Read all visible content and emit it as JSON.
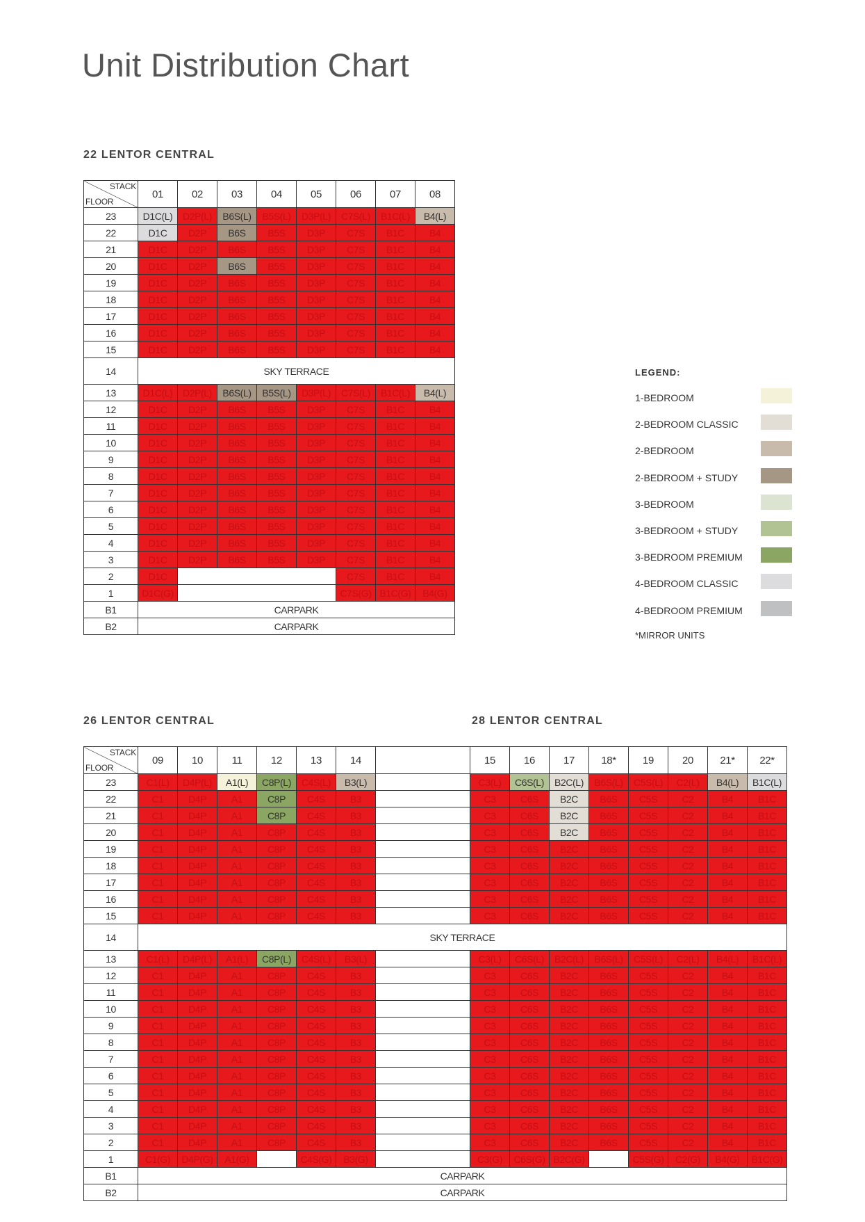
{
  "title": "Unit Distribution Chart",
  "sold_color": "#e8191c",
  "tables": [
    {
      "headings": [
        "22 LENTOR CENTRAL"
      ],
      "corner_top": "STACK",
      "corner_bottom": "FLOOR",
      "stacks": [
        "01",
        "02",
        "03",
        "04",
        "05",
        "06",
        "07",
        "08"
      ],
      "rows": [
        {
          "floor": "23",
          "units": [
            {
              "label": "D1C(L)",
              "color": "#dcdcde"
            },
            "D2P(L)",
            {
              "label": "B6S(L)",
              "color": "#a69684"
            },
            "B5S(L)",
            "D3P(L)",
            "C7S(L)",
            "B1C(L)",
            {
              "label": "B4(L)",
              "color": "#c9bbab"
            }
          ]
        },
        {
          "floor": "22",
          "units": [
            {
              "label": "D1C",
              "color": "#dcdcde"
            },
            "D2P",
            {
              "label": "B6S",
              "color": "#a69684"
            },
            "B5S",
            "D3P",
            "C7S",
            "B1C",
            "B4"
          ]
        },
        {
          "floor": "21",
          "units": [
            "D1C",
            "D2P",
            "B6S",
            "B5S",
            "D3P",
            "C7S",
            "B1C",
            "B4"
          ]
        },
        {
          "floor": "20",
          "units": [
            "D1C",
            "D2P",
            {
              "label": "B6S",
              "color": "#a69684"
            },
            "B5S",
            "D3P",
            "C7S",
            "B1C",
            "B4"
          ]
        },
        {
          "floor": "19",
          "units": [
            "D1C",
            "D2P",
            "B6S",
            "B5S",
            "D3P",
            "C7S",
            "B1C",
            "B4"
          ]
        },
        {
          "floor": "18",
          "units": [
            "D1C",
            "D2P",
            "B6S",
            "B5S",
            "D3P",
            "C7S",
            "B1C",
            "B4"
          ]
        },
        {
          "floor": "17",
          "units": [
            "D1C",
            "D2P",
            "B6S",
            "B5S",
            "D3P",
            "C7S",
            "B1C",
            "B4"
          ]
        },
        {
          "floor": "16",
          "units": [
            "D1C",
            "D2P",
            "B6S",
            "B5S",
            "D3P",
            "C7S",
            "B1C",
            "B4"
          ]
        },
        {
          "floor": "15",
          "units": [
            "D1C",
            "D2P",
            "B6S",
            "B5S",
            "D3P",
            "C7S",
            "B1C",
            "B4"
          ]
        },
        {
          "floor": "14",
          "text": "SKY TERRACE"
        },
        {
          "floor": "13",
          "units": [
            "D1C(L)",
            "D2P(L)",
            {
              "label": "B6S(L)",
              "color": "#a69684"
            },
            {
              "label": "B5S(L)",
              "color": "#a69684"
            },
            "D3P(L)",
            "C7S(L)",
            "B1C(L)",
            {
              "label": "B4(L)",
              "color": "#c9bbab"
            }
          ]
        },
        {
          "floor": "12",
          "units": [
            "D1C",
            "D2P",
            "B6S",
            "B5S",
            "D3P",
            "C7S",
            "B1C",
            "B4"
          ]
        },
        {
          "floor": "11",
          "units": [
            "D1C",
            "D2P",
            "B6S",
            "B5S",
            "D3P",
            "C7S",
            "B1C",
            "B4"
          ]
        },
        {
          "floor": "10",
          "units": [
            "D1C",
            "D2P",
            "B6S",
            "B5S",
            "D3P",
            "C7S",
            "B1C",
            "B4"
          ]
        },
        {
          "floor": "9",
          "units": [
            "D1C",
            "D2P",
            "B6S",
            "B5S",
            "D3P",
            "C7S",
            "B1C",
            "B4"
          ]
        },
        {
          "floor": "8",
          "units": [
            "D1C",
            "D2P",
            "B6S",
            "B5S",
            "D3P",
            "C7S",
            "B1C",
            "B4"
          ]
        },
        {
          "floor": "7",
          "units": [
            "D1C",
            "D2P",
            "B6S",
            "B5S",
            "D3P",
            "C7S",
            "B1C",
            "B4"
          ]
        },
        {
          "floor": "6",
          "units": [
            "D1C",
            "D2P",
            "B6S",
            "B5S",
            "D3P",
            "C7S",
            "B1C",
            "B4"
          ]
        },
        {
          "floor": "5",
          "units": [
            "D1C",
            "D2P",
            "B6S",
            "B5S",
            "D3P",
            "C7S",
            "B1C",
            "B4"
          ]
        },
        {
          "floor": "4",
          "units": [
            "D1C",
            "D2P",
            "B6S",
            "B5S",
            "D3P",
            "C7S",
            "B1C",
            "B4"
          ]
        },
        {
          "floor": "3",
          "units": [
            "D1C",
            "D2P",
            "B6S",
            "B5S",
            "D3P",
            "C7S",
            "B1C",
            "B4"
          ]
        },
        {
          "floor": "2",
          "units": [
            "D1C",
            null,
            null,
            null,
            null,
            "C7S",
            "B1C",
            "B4"
          ]
        },
        {
          "floor": "1",
          "units": [
            "D1C(G)",
            null,
            null,
            null,
            null,
            "C7S(G)",
            "B1C(G)",
            "B4(G)"
          ]
        },
        {
          "floor": "B1",
          "text": "CARPARK"
        },
        {
          "floor": "B2",
          "text": "CARPARK"
        }
      ]
    },
    {
      "headings": [
        "26 LENTOR CENTRAL",
        "28 LENTOR CENTRAL"
      ],
      "corner_top": "STACK",
      "corner_bottom": "FLOOR",
      "stacks": [
        "09",
        "10",
        "11",
        "12",
        "13",
        "14",
        null,
        "15",
        "16",
        "17",
        "18*",
        "19",
        "20",
        "21*",
        "22*"
      ],
      "rows": [
        {
          "floor": "23",
          "units": [
            "C1(L)",
            "D4P(L)",
            {
              "label": "A1(L)",
              "color": "#f4f2d9"
            },
            {
              "label": "C8P(L)",
              "color": "#8ba663"
            },
            "C4S(L)",
            {
              "label": "B3(L)",
              "color": "#c9bbab"
            },
            null,
            "C3(L)",
            {
              "label": "C6S(L)",
              "color": "#b1c293"
            },
            {
              "label": "B2C(L)",
              "color": "#e2ddd5"
            },
            "B6S(L)",
            "C5S(L)",
            "C2(L)",
            {
              "label": "B4(L)",
              "color": "#c9bbab"
            },
            {
              "label": "B1C(L)",
              "color": "#dcdcde"
            }
          ]
        },
        {
          "floor": "22",
          "units": [
            "C1",
            "D4P",
            "A1",
            {
              "label": "C8P",
              "color": "#8ba663"
            },
            "C4S",
            "B3",
            null,
            "C3",
            "C6S",
            {
              "label": "B2C",
              "color": "#e2ddd5"
            },
            "B6S",
            "C5S",
            "C2",
            "B4",
            "B1C"
          ]
        },
        {
          "floor": "21",
          "units": [
            "C1",
            "D4P",
            "A1",
            {
              "label": "C8P",
              "color": "#8ba663"
            },
            "C4S",
            "B3",
            null,
            "C3",
            "C6S",
            {
              "label": "B2C",
              "color": "#e2ddd5"
            },
            "B6S",
            "C5S",
            "C2",
            "B4",
            "B1C"
          ]
        },
        {
          "floor": "20",
          "units": [
            "C1",
            "D4P",
            "A1",
            "C8P",
            "C4S",
            "B3",
            null,
            "C3",
            "C6S",
            {
              "label": "B2C",
              "color": "#e2ddd5"
            },
            "B6S",
            "C5S",
            "C2",
            "B4",
            "B1C"
          ]
        },
        {
          "floor": "19",
          "units": [
            "C1",
            "D4P",
            "A1",
            "C8P",
            "C4S",
            "B3",
            null,
            "C3",
            "C6S",
            "B2C",
            "B6S",
            "C5S",
            "C2",
            "B4",
            "B1C"
          ]
        },
        {
          "floor": "18",
          "units": [
            "C1",
            "D4P",
            "A1",
            "C8P",
            "C4S",
            "B3",
            null,
            "C3",
            "C6S",
            "B2C",
            "B6S",
            "C5S",
            "C2",
            "B4",
            "B1C"
          ]
        },
        {
          "floor": "17",
          "units": [
            "C1",
            "D4P",
            "A1",
            "C8P",
            "C4S",
            "B3",
            null,
            "C3",
            "C6S",
            "B2C",
            "B6S",
            "C5S",
            "C2",
            "B4",
            "B1C"
          ]
        },
        {
          "floor": "16",
          "units": [
            "C1",
            "D4P",
            "A1",
            "C8P",
            "C4S",
            "B3",
            null,
            "C3",
            "C6S",
            "B2C",
            "B6S",
            "C5S",
            "C2",
            "B4",
            "B1C"
          ]
        },
        {
          "floor": "15",
          "units": [
            "C1",
            "D4P",
            "A1",
            "C8P",
            "C4S",
            "B3",
            null,
            "C3",
            "C6S",
            "B2C",
            "B6S",
            "C5S",
            "C2",
            "B4",
            "B1C"
          ]
        },
        {
          "floor": "14",
          "text": "SKY TERRACE"
        },
        {
          "floor": "13",
          "units": [
            "C1(L)",
            "D4P(L)",
            "A1(L)",
            {
              "label": "C8P(L)",
              "color": "#8ba663"
            },
            "C4S(L)",
            "B3(L)",
            null,
            "C3(L)",
            "C6S(L)",
            "B2C(L)",
            "B6S(L)",
            "C5S(L)",
            "C2(L)",
            "B4(L)",
            "B1C(L)"
          ]
        },
        {
          "floor": "12",
          "units": [
            "C1",
            "D4P",
            "A1",
            "C8P",
            "C4S",
            "B3",
            null,
            "C3",
            "C6S",
            "B2C",
            "B6S",
            "C5S",
            "C2",
            "B4",
            "B1C"
          ]
        },
        {
          "floor": "11",
          "units": [
            "C1",
            "D4P",
            "A1",
            "C8P",
            "C4S",
            "B3",
            null,
            "C3",
            "C6S",
            "B2C",
            "B6S",
            "C5S",
            "C2",
            "B4",
            "B1C"
          ]
        },
        {
          "floor": "10",
          "units": [
            "C1",
            "D4P",
            "A1",
            "C8P",
            "C4S",
            "B3",
            null,
            "C3",
            "C6S",
            "B2C",
            "B6S",
            "C5S",
            "C2",
            "B4",
            "B1C"
          ]
        },
        {
          "floor": "9",
          "units": [
            "C1",
            "D4P",
            "A1",
            "C8P",
            "C4S",
            "B3",
            null,
            "C3",
            "C6S",
            "B2C",
            "B6S",
            "C5S",
            "C2",
            "B4",
            "B1C"
          ]
        },
        {
          "floor": "8",
          "units": [
            "C1",
            "D4P",
            "A1",
            "C8P",
            "C4S",
            "B3",
            null,
            "C3",
            "C6S",
            "B2C",
            "B6S",
            "C5S",
            "C2",
            "B4",
            "B1C"
          ]
        },
        {
          "floor": "7",
          "units": [
            "C1",
            "D4P",
            "A1",
            "C8P",
            "C4S",
            "B3",
            null,
            "C3",
            "C6S",
            "B2C",
            "B6S",
            "C5S",
            "C2",
            "B4",
            "B1C"
          ]
        },
        {
          "floor": "6",
          "units": [
            "C1",
            "D4P",
            "A1",
            "C8P",
            "C4S",
            "B3",
            null,
            "C3",
            "C6S",
            "B2C",
            "B6S",
            "C5S",
            "C2",
            "B4",
            "B1C"
          ]
        },
        {
          "floor": "5",
          "units": [
            "C1",
            "D4P",
            "A1",
            "C8P",
            "C4S",
            "B3",
            null,
            "C3",
            "C6S",
            "B2C",
            "B6S",
            "C5S",
            "C2",
            "B4",
            "B1C"
          ]
        },
        {
          "floor": "4",
          "units": [
            "C1",
            "D4P",
            "A1",
            "C8P",
            "C4S",
            "B3",
            null,
            "C3",
            "C6S",
            "B2C",
            "B6S",
            "C5S",
            "C2",
            "B4",
            "B1C"
          ]
        },
        {
          "floor": "3",
          "units": [
            "C1",
            "D4P",
            "A1",
            "C8P",
            "C4S",
            "B3",
            null,
            "C3",
            "C6S",
            "B2C",
            "B6S",
            "C5S",
            "C2",
            "B4",
            "B1C"
          ]
        },
        {
          "floor": "2",
          "units": [
            "C1",
            "D4P",
            "A1",
            "C8P",
            "C4S",
            "B3",
            null,
            "C3",
            "C6S",
            "B2C",
            "B6S",
            "C5S",
            "C2",
            "B4",
            "B1C"
          ]
        },
        {
          "floor": "1",
          "units": [
            "C1(G)",
            "D4P(G)",
            "A1(G)",
            null,
            "C4S(G)",
            "B3(G)",
            null,
            "C3(G)",
            "C6S(G)",
            "B2C(G)",
            null,
            "C5S(G)",
            "C2(G)",
            "B4(G)",
            "B1C(G)"
          ]
        },
        {
          "floor": "B1",
          "text": "CARPARK"
        },
        {
          "floor": "B2",
          "text": "CARPARK"
        }
      ]
    }
  ],
  "legend": {
    "title": "LEGEND:",
    "items": [
      {
        "label": "1-BEDROOM",
        "color": "#f4f2d9"
      },
      {
        "label": "2-BEDROOM CLASSIC",
        "color": "#e2ddd5"
      },
      {
        "label": "2-BEDROOM",
        "color": "#c9bbab"
      },
      {
        "label": "2-BEDROOM + STUDY",
        "color": "#a69684"
      },
      {
        "label": "3-BEDROOM",
        "color": "#dde3d1"
      },
      {
        "label": "3-BEDROOM + STUDY",
        "color": "#b1c293"
      },
      {
        "label": "3-BEDROOM PREMIUM",
        "color": "#8ba663"
      },
      {
        "label": "4-BEDROOM CLASSIC",
        "color": "#dcdcde"
      },
      {
        "label": "4-BEDROOM PREMIUM",
        "color": "#bfc0c2"
      }
    ],
    "note": "*MIRROR UNITS"
  }
}
